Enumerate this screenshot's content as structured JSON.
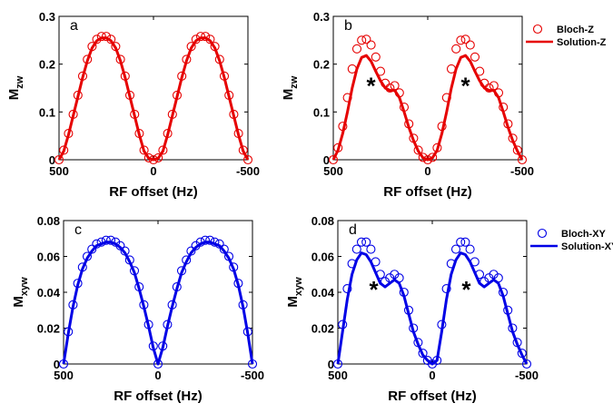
{
  "chart_data": [
    {
      "type": "line",
      "panel": "a",
      "xlabel": "RF offset (Hz)",
      "ylabel": "M",
      "ylabel_sub": "zw",
      "xlim": [
        500,
        -500
      ],
      "ylim": [
        0,
        0.3
      ],
      "xticks": [
        "500",
        "0",
        "-500"
      ],
      "yticks": [
        "0",
        "0.1",
        "0.2",
        "0.3"
      ],
      "color": "#e60000",
      "series": [
        {
          "name": "Bloch-Z",
          "style": "markers",
          "x": [
            500,
            475,
            450,
            425,
            400,
            375,
            350,
            325,
            300,
            275,
            250,
            225,
            200,
            175,
            150,
            125,
            100,
            75,
            50,
            25,
            0,
            -25,
            -50,
            -75,
            -100,
            -125,
            -150,
            -175,
            -200,
            -225,
            -250,
            -275,
            -300,
            -325,
            -350,
            -375,
            -400,
            -425,
            -450,
            -475,
            -500
          ],
          "y": [
            0,
            0.02,
            0.055,
            0.095,
            0.135,
            0.175,
            0.21,
            0.237,
            0.252,
            0.258,
            0.258,
            0.252,
            0.237,
            0.21,
            0.175,
            0.135,
            0.095,
            0.055,
            0.02,
            0.004,
            0,
            0.004,
            0.02,
            0.055,
            0.095,
            0.135,
            0.175,
            0.21,
            0.237,
            0.252,
            0.258,
            0.258,
            0.252,
            0.237,
            0.21,
            0.175,
            0.135,
            0.095,
            0.055,
            0.02,
            0
          ]
        },
        {
          "name": "Solution-Z",
          "style": "line",
          "x": [
            500,
            475,
            450,
            425,
            400,
            375,
            350,
            325,
            300,
            275,
            250,
            225,
            200,
            175,
            150,
            125,
            100,
            75,
            50,
            25,
            0,
            -25,
            -50,
            -75,
            -100,
            -125,
            -150,
            -175,
            -200,
            -225,
            -250,
            -275,
            -300,
            -325,
            -350,
            -375,
            -400,
            -425,
            -450,
            -475,
            -500
          ],
          "y": [
            0,
            0.018,
            0.052,
            0.092,
            0.132,
            0.172,
            0.207,
            0.234,
            0.249,
            0.255,
            0.255,
            0.249,
            0.234,
            0.207,
            0.172,
            0.132,
            0.092,
            0.052,
            0.018,
            0.003,
            0,
            0.003,
            0.018,
            0.052,
            0.092,
            0.132,
            0.172,
            0.207,
            0.234,
            0.249,
            0.255,
            0.255,
            0.249,
            0.234,
            0.207,
            0.172,
            0.132,
            0.092,
            0.052,
            0.018,
            0
          ]
        }
      ]
    },
    {
      "type": "line",
      "panel": "b",
      "xlabel": "RF offset (Hz)",
      "ylabel": "M",
      "ylabel_sub": "zw",
      "xlim": [
        500,
        -500
      ],
      "ylim": [
        0,
        0.3
      ],
      "xticks": [
        "500",
        "0",
        "-500"
      ],
      "yticks": [
        "0",
        "0.1",
        "0.2",
        "0.3"
      ],
      "color": "#e60000",
      "annotations": [
        {
          "text": "*",
          "x": 300,
          "y": 0.16
        },
        {
          "text": "*",
          "x": -200,
          "y": 0.16
        }
      ],
      "legend": {
        "position": "top-right",
        "entries": [
          "Bloch-Z",
          "Solution-Z"
        ]
      },
      "series": [
        {
          "name": "Bloch-Z",
          "style": "markers",
          "x": [
            500,
            475,
            450,
            425,
            400,
            375,
            350,
            325,
            300,
            275,
            250,
            225,
            200,
            175,
            150,
            125,
            100,
            75,
            50,
            25,
            0,
            -25,
            -50,
            -75,
            -100,
            -125,
            -150,
            -175,
            -200,
            -225,
            -250,
            -275,
            -300,
            -325,
            -350,
            -375,
            -400,
            -425,
            -450,
            -475,
            -500
          ],
          "y": [
            0,
            0.025,
            0.07,
            0.13,
            0.19,
            0.232,
            0.25,
            0.252,
            0.24,
            0.215,
            0.185,
            0.16,
            0.15,
            0.155,
            0.14,
            0.11,
            0.075,
            0.045,
            0.02,
            0.005,
            0,
            0.005,
            0.025,
            0.07,
            0.13,
            0.19,
            0.232,
            0.25,
            0.252,
            0.24,
            0.215,
            0.185,
            0.16,
            0.15,
            0.155,
            0.14,
            0.11,
            0.075,
            0.045,
            0.02,
            0
          ]
        },
        {
          "name": "Solution-Z",
          "style": "line",
          "x": [
            500,
            475,
            450,
            425,
            400,
            375,
            350,
            325,
            300,
            275,
            250,
            225,
            200,
            175,
            150,
            125,
            100,
            75,
            50,
            25,
            0,
            -25,
            -50,
            -75,
            -100,
            -125,
            -150,
            -175,
            -200,
            -225,
            -250,
            -275,
            -300,
            -325,
            -350,
            -375,
            -400,
            -425,
            -450,
            -475,
            -500
          ],
          "y": [
            0,
            0.02,
            0.055,
            0.1,
            0.15,
            0.19,
            0.214,
            0.218,
            0.206,
            0.185,
            0.165,
            0.15,
            0.145,
            0.145,
            0.13,
            0.1,
            0.068,
            0.04,
            0.018,
            0.004,
            0,
            0.004,
            0.02,
            0.055,
            0.1,
            0.15,
            0.19,
            0.214,
            0.218,
            0.206,
            0.185,
            0.165,
            0.15,
            0.145,
            0.145,
            0.13,
            0.1,
            0.068,
            0.04,
            0.018,
            0
          ]
        }
      ]
    },
    {
      "type": "line",
      "panel": "c",
      "xlabel": "RF offset (Hz)",
      "ylabel": "M",
      "ylabel_sub": "xyw",
      "xlim": [
        500,
        -500
      ],
      "ylim": [
        0,
        0.08
      ],
      "xticks": [
        "500",
        "0",
        "-500"
      ],
      "yticks": [
        "0",
        "0.02",
        "0.04",
        "0.06",
        "0.08"
      ],
      "color": "#0000e6",
      "series": [
        {
          "name": "Bloch-XY",
          "style": "markers",
          "x": [
            500,
            475,
            450,
            425,
            400,
            375,
            350,
            325,
            300,
            275,
            250,
            225,
            200,
            175,
            150,
            125,
            100,
            75,
            50,
            25,
            0,
            -25,
            -50,
            -75,
            -100,
            -125,
            -150,
            -175,
            -200,
            -225,
            -250,
            -275,
            -300,
            -325,
            -350,
            -375,
            -400,
            -425,
            -450,
            -475,
            -500
          ],
          "y": [
            0,
            0.018,
            0.033,
            0.045,
            0.054,
            0.06,
            0.064,
            0.067,
            0.068,
            0.069,
            0.069,
            0.068,
            0.066,
            0.063,
            0.058,
            0.052,
            0.043,
            0.033,
            0.022,
            0.01,
            0,
            0.01,
            0.022,
            0.033,
            0.043,
            0.052,
            0.058,
            0.063,
            0.066,
            0.068,
            0.069,
            0.069,
            0.068,
            0.067,
            0.064,
            0.06,
            0.054,
            0.045,
            0.033,
            0.018,
            0
          ]
        },
        {
          "name": "Solution-XY",
          "style": "line",
          "x": [
            500,
            475,
            450,
            425,
            400,
            375,
            350,
            325,
            300,
            275,
            250,
            225,
            200,
            175,
            150,
            125,
            100,
            75,
            50,
            25,
            0,
            -25,
            -50,
            -75,
            -100,
            -125,
            -150,
            -175,
            -200,
            -225,
            -250,
            -275,
            -300,
            -325,
            -350,
            -375,
            -400,
            -425,
            -450,
            -475,
            -500
          ],
          "y": [
            0,
            0.017,
            0.032,
            0.044,
            0.053,
            0.059,
            0.063,
            0.066,
            0.067,
            0.068,
            0.068,
            0.067,
            0.065,
            0.062,
            0.057,
            0.051,
            0.042,
            0.032,
            0.021,
            0.009,
            0,
            0.009,
            0.021,
            0.032,
            0.042,
            0.051,
            0.057,
            0.062,
            0.065,
            0.067,
            0.068,
            0.068,
            0.067,
            0.066,
            0.063,
            0.059,
            0.053,
            0.044,
            0.032,
            0.017,
            0
          ]
        }
      ]
    },
    {
      "type": "line",
      "panel": "d",
      "xlabel": "RF offset (Hz)",
      "ylabel": "M",
      "ylabel_sub": "xyw",
      "xlim": [
        500,
        -500
      ],
      "ylim": [
        0,
        0.08
      ],
      "xticks": [
        "500",
        "0",
        "-500"
      ],
      "yticks": [
        "0",
        "0.02",
        "0.04",
        "0.06",
        "0.08"
      ],
      "color": "#0000e6",
      "annotations": [
        {
          "text": "*",
          "x": 310,
          "y": 0.043
        },
        {
          "text": "*",
          "x": -180,
          "y": 0.043
        }
      ],
      "legend": {
        "position": "top-right",
        "entries": [
          "Bloch-XY",
          "Solution-XY"
        ]
      },
      "series": [
        {
          "name": "Bloch-XY",
          "style": "markers",
          "x": [
            500,
            475,
            450,
            425,
            400,
            375,
            350,
            325,
            300,
            275,
            250,
            225,
            200,
            175,
            150,
            125,
            100,
            75,
            50,
            25,
            0,
            -25,
            -50,
            -75,
            -100,
            -125,
            -150,
            -175,
            -200,
            -225,
            -250,
            -275,
            -300,
            -325,
            -350,
            -375,
            -400,
            -425,
            -450,
            -475,
            -500
          ],
          "y": [
            0,
            0.022,
            0.042,
            0.056,
            0.064,
            0.068,
            0.068,
            0.064,
            0.057,
            0.05,
            0.046,
            0.048,
            0.05,
            0.048,
            0.04,
            0.03,
            0.02,
            0.012,
            0.006,
            0.002,
            0,
            0.002,
            0.022,
            0.042,
            0.056,
            0.064,
            0.068,
            0.068,
            0.064,
            0.057,
            0.05,
            0.046,
            0.048,
            0.05,
            0.048,
            0.04,
            0.03,
            0.02,
            0.012,
            0.006,
            0
          ]
        },
        {
          "name": "Solution-XY",
          "style": "line",
          "x": [
            500,
            475,
            450,
            425,
            400,
            375,
            350,
            325,
            300,
            275,
            250,
            225,
            200,
            175,
            150,
            125,
            100,
            75,
            50,
            25,
            0,
            -25,
            -50,
            -75,
            -100,
            -125,
            -150,
            -175,
            -200,
            -225,
            -250,
            -275,
            -300,
            -325,
            -350,
            -375,
            -400,
            -425,
            -450,
            -475,
            -500
          ],
          "y": [
            0,
            0.018,
            0.036,
            0.05,
            0.058,
            0.062,
            0.061,
            0.057,
            0.051,
            0.045,
            0.043,
            0.045,
            0.047,
            0.045,
            0.038,
            0.028,
            0.018,
            0.011,
            0.005,
            0.002,
            0,
            0.002,
            0.018,
            0.036,
            0.05,
            0.058,
            0.062,
            0.061,
            0.057,
            0.051,
            0.045,
            0.043,
            0.045,
            0.047,
            0.045,
            0.038,
            0.028,
            0.018,
            0.011,
            0.005,
            0
          ]
        }
      ]
    }
  ]
}
